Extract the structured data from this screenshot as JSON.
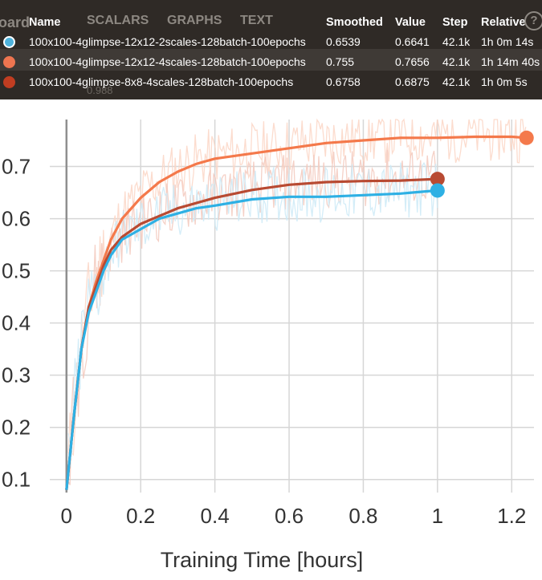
{
  "tooltip": {
    "background_fragments": {
      "app_name_fragment": "oard",
      "tab_scalars": "SCALARS",
      "tab_graphs": "GRAPHS",
      "tab_text": "TEXT",
      "ghost_value": "0.988"
    },
    "headers": {
      "name": "Name",
      "smoothed": "Smoothed",
      "value": "Value",
      "step": "Step",
      "relative": "Relative"
    },
    "rows": [
      {
        "name": "100x100-4glimpse-12x12-2scales-128batch-100epochs",
        "smoothed": "0.6539",
        "value": "0.6641",
        "step": "42.1k",
        "relative": "1h 0m 14s",
        "color": "#4fb3dc",
        "selected": true
      },
      {
        "name": "100x100-4glimpse-12x12-4scales-128batch-100epochs",
        "smoothed": "0.755",
        "value": "0.7656",
        "step": "42.1k",
        "relative": "1h 14m 40s",
        "color": "#ee7550",
        "selected": false
      },
      {
        "name": "100x100-4glimpse-8x8-4scales-128batch-100epochs",
        "smoothed": "0.6758",
        "value": "0.6875",
        "step": "42.1k",
        "relative": "1h 0m 5s",
        "color": "#c13d21",
        "selected": false
      }
    ]
  },
  "chart_data": {
    "type": "line",
    "xlabel": "Training Time [hours]",
    "ylabel": "",
    "xlim": [
      -0.045,
      1.26
    ],
    "ylim": [
      0.075,
      0.79
    ],
    "xticks": [
      0,
      0.2,
      0.4,
      0.6,
      0.8,
      1,
      1.2
    ],
    "xtick_labels": [
      "0",
      "0.2",
      "0.4",
      "0.6",
      "0.8",
      "1",
      "1.2"
    ],
    "yticks": [
      0.1,
      0.2,
      0.3,
      0.4,
      0.5,
      0.6,
      0.7
    ],
    "ytick_labels": [
      "0.1",
      "0.2",
      "0.3",
      "0.4",
      "0.5",
      "0.6",
      "0.7"
    ],
    "grid": true,
    "series": [
      {
        "name": "100x100-4glimpse-12x12-4scales-128batch-100epochs",
        "color": "#f4794b",
        "raw_color": "#fcd6c5",
        "x": [
          0,
          0.02,
          0.04,
          0.06,
          0.08,
          0.1,
          0.12,
          0.15,
          0.2,
          0.25,
          0.3,
          0.35,
          0.4,
          0.5,
          0.6,
          0.7,
          0.8,
          0.9,
          1.0,
          1.1,
          1.2,
          1.24
        ],
        "y": [
          0.08,
          0.22,
          0.35,
          0.43,
          0.48,
          0.52,
          0.56,
          0.6,
          0.64,
          0.67,
          0.69,
          0.705,
          0.715,
          0.725,
          0.735,
          0.745,
          0.75,
          0.755,
          0.755,
          0.757,
          0.757,
          0.755
        ]
      },
      {
        "name": "100x100-4glimpse-8x8-4scales-128batch-100epochs",
        "color": "#b84a32",
        "raw_color": "#f3c9bd",
        "x": [
          0,
          0.02,
          0.04,
          0.06,
          0.08,
          0.1,
          0.12,
          0.15,
          0.2,
          0.25,
          0.3,
          0.35,
          0.4,
          0.5,
          0.6,
          0.7,
          0.8,
          0.9,
          1.0
        ],
        "y": [
          0.08,
          0.22,
          0.35,
          0.43,
          0.47,
          0.51,
          0.54,
          0.565,
          0.59,
          0.605,
          0.62,
          0.63,
          0.64,
          0.655,
          0.665,
          0.67,
          0.672,
          0.673,
          0.676
        ]
      },
      {
        "name": "100x100-4glimpse-12x12-2scales-128batch-100epochs",
        "color": "#2eb0e4",
        "raw_color": "#cdeaf7",
        "x": [
          0,
          0.02,
          0.04,
          0.06,
          0.08,
          0.1,
          0.12,
          0.15,
          0.2,
          0.25,
          0.3,
          0.35,
          0.4,
          0.5,
          0.6,
          0.7,
          0.8,
          0.9,
          1.0
        ],
        "y": [
          0.08,
          0.22,
          0.35,
          0.42,
          0.46,
          0.5,
          0.53,
          0.56,
          0.58,
          0.6,
          0.61,
          0.62,
          0.625,
          0.637,
          0.642,
          0.642,
          0.645,
          0.648,
          0.654
        ]
      }
    ]
  }
}
